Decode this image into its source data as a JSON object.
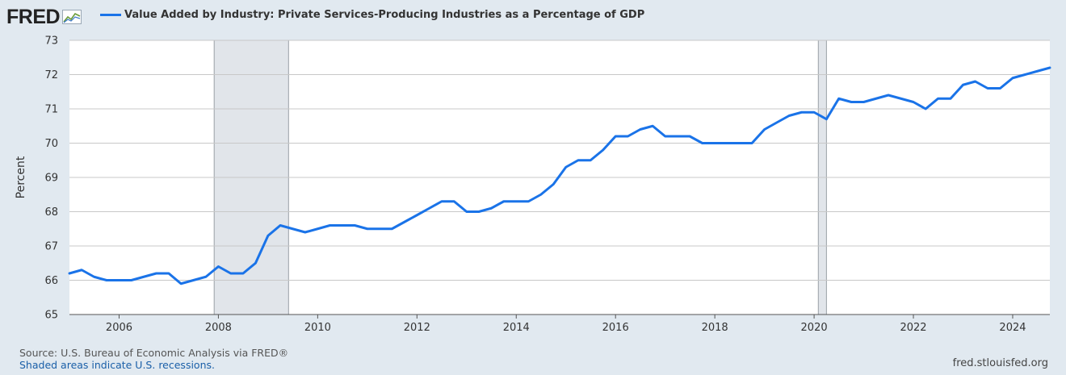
{
  "logo": {
    "text": "FRED"
  },
  "chart_data": {
    "type": "line",
    "title": "Value Added by Industry: Private Services-Producing Industries as a Percentage of GDP",
    "ylabel": "Percent",
    "xlabel": "",
    "ylim": [
      65,
      73
    ],
    "xlim": [
      "2005-01-01",
      "2024-10-01"
    ],
    "y_ticks": [
      65,
      66,
      67,
      68,
      69,
      70,
      71,
      72,
      73
    ],
    "x_ticks": [
      "2006",
      "2008",
      "2010",
      "2012",
      "2014",
      "2016",
      "2018",
      "2020",
      "2022",
      "2024"
    ],
    "recessions": [
      {
        "start": "2007-12-01",
        "end": "2009-06-01"
      },
      {
        "start": "2020-02-01",
        "end": "2020-04-01"
      }
    ],
    "grid": true,
    "series": [
      {
        "name": "Value Added by Industry: Private Services-Producing Industries as a Percentage of GDP",
        "color": "#1a73e8",
        "points": [
          [
            "2005-01-01",
            66.2
          ],
          [
            "2005-04-01",
            66.3
          ],
          [
            "2005-07-01",
            66.1
          ],
          [
            "2005-10-01",
            66.0
          ],
          [
            "2006-01-01",
            66.0
          ],
          [
            "2006-04-01",
            66.0
          ],
          [
            "2006-07-01",
            66.1
          ],
          [
            "2006-10-01",
            66.2
          ],
          [
            "2007-01-01",
            66.2
          ],
          [
            "2007-04-01",
            65.9
          ],
          [
            "2007-07-01",
            66.0
          ],
          [
            "2007-10-01",
            66.1
          ],
          [
            "2008-01-01",
            66.4
          ],
          [
            "2008-04-01",
            66.2
          ],
          [
            "2008-07-01",
            66.2
          ],
          [
            "2008-10-01",
            66.5
          ],
          [
            "2009-01-01",
            67.3
          ],
          [
            "2009-04-01",
            67.6
          ],
          [
            "2009-07-01",
            67.5
          ],
          [
            "2009-10-01",
            67.4
          ],
          [
            "2010-01-01",
            67.5
          ],
          [
            "2010-04-01",
            67.6
          ],
          [
            "2010-07-01",
            67.6
          ],
          [
            "2010-10-01",
            67.6
          ],
          [
            "2011-01-01",
            67.5
          ],
          [
            "2011-04-01",
            67.5
          ],
          [
            "2011-07-01",
            67.5
          ],
          [
            "2011-10-01",
            67.7
          ],
          [
            "2012-01-01",
            67.9
          ],
          [
            "2012-04-01",
            68.1
          ],
          [
            "2012-07-01",
            68.3
          ],
          [
            "2012-10-01",
            68.3
          ],
          [
            "2013-01-01",
            68.0
          ],
          [
            "2013-04-01",
            68.0
          ],
          [
            "2013-07-01",
            68.1
          ],
          [
            "2013-10-01",
            68.3
          ],
          [
            "2014-01-01",
            68.3
          ],
          [
            "2014-04-01",
            68.3
          ],
          [
            "2014-07-01",
            68.5
          ],
          [
            "2014-10-01",
            68.8
          ],
          [
            "2015-01-01",
            69.3
          ],
          [
            "2015-04-01",
            69.5
          ],
          [
            "2015-07-01",
            69.5
          ],
          [
            "2015-10-01",
            69.8
          ],
          [
            "2016-01-01",
            70.2
          ],
          [
            "2016-04-01",
            70.2
          ],
          [
            "2016-07-01",
            70.4
          ],
          [
            "2016-10-01",
            70.5
          ],
          [
            "2017-01-01",
            70.2
          ],
          [
            "2017-04-01",
            70.2
          ],
          [
            "2017-07-01",
            70.2
          ],
          [
            "2017-10-01",
            70.0
          ],
          [
            "2018-01-01",
            70.0
          ],
          [
            "2018-04-01",
            70.0
          ],
          [
            "2018-07-01",
            70.0
          ],
          [
            "2018-10-01",
            70.0
          ],
          [
            "2019-01-01",
            70.4
          ],
          [
            "2019-04-01",
            70.6
          ],
          [
            "2019-07-01",
            70.8
          ],
          [
            "2019-10-01",
            70.9
          ],
          [
            "2020-01-01",
            70.9
          ],
          [
            "2020-04-01",
            70.7
          ],
          [
            "2020-07-01",
            71.3
          ],
          [
            "2020-10-01",
            71.2
          ],
          [
            "2021-01-01",
            71.2
          ],
          [
            "2021-04-01",
            71.3
          ],
          [
            "2021-07-01",
            71.4
          ],
          [
            "2021-10-01",
            71.3
          ],
          [
            "2022-01-01",
            71.2
          ],
          [
            "2022-04-01",
            71.0
          ],
          [
            "2022-07-01",
            71.3
          ],
          [
            "2022-10-01",
            71.3
          ],
          [
            "2023-01-01",
            71.7
          ],
          [
            "2023-04-01",
            71.8
          ],
          [
            "2023-07-01",
            71.6
          ],
          [
            "2023-10-01",
            71.6
          ],
          [
            "2024-01-01",
            71.9
          ],
          [
            "2024-04-01",
            72.0
          ],
          [
            "2024-07-01",
            72.1
          ],
          [
            "2024-10-01",
            72.2
          ]
        ]
      }
    ]
  },
  "footer": {
    "source": "Source: U.S. Bureau of Economic Analysis via FRED®",
    "recession_note": "Shaded areas indicate U.S. recessions.",
    "site": "fred.stlouisfed.org"
  },
  "colors": {
    "background": "#e1e9f0",
    "plot_background": "#ffffff",
    "grid": "#c8c8c8",
    "recession_fill": "#e1e5ea",
    "series": "#1a73e8"
  }
}
